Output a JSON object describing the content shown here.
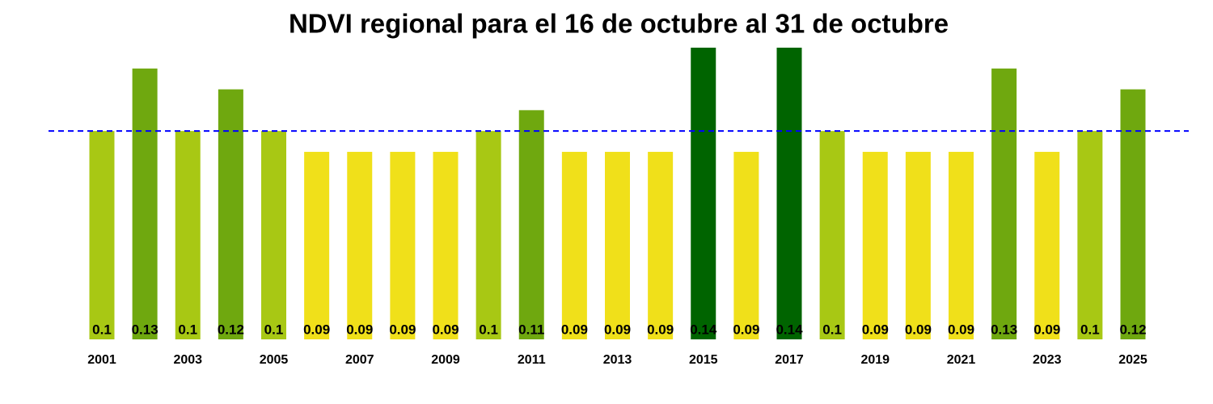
{
  "chart_data": {
    "type": "bar",
    "title": "NDVI regional para el 16 de octubre al 31 de octubre",
    "categories": [
      "2001",
      null,
      "2003",
      null,
      "2005",
      null,
      "2007",
      null,
      "2009",
      null,
      "2011",
      null,
      "2013",
      null,
      "2015",
      null,
      "2017",
      null,
      "2019",
      null,
      "2021",
      null,
      "2023",
      null,
      "2025"
    ],
    "values": [
      0.1,
      0.13,
      0.1,
      0.12,
      0.1,
      0.09,
      0.09,
      0.09,
      0.09,
      0.1,
      0.11,
      0.09,
      0.09,
      0.09,
      0.14,
      0.09,
      0.14,
      0.1,
      0.09,
      0.09,
      0.09,
      0.13,
      0.09,
      0.1,
      0.12
    ],
    "colors": [
      "#a8c814",
      "#6fa80f",
      "#a8c814",
      "#6fa80f",
      "#a8c814",
      "#f0e01a",
      "#f0e01a",
      "#f0e01a",
      "#f0e01a",
      "#a8c814",
      "#6fa80f",
      "#f0e01a",
      "#f0e01a",
      "#f0e01a",
      "#006400",
      "#f0e01a",
      "#006400",
      "#a8c814",
      "#f0e01a",
      "#f0e01a",
      "#f0e01a",
      "#6fa80f",
      "#f0e01a",
      "#a8c814",
      "#6fa80f"
    ],
    "ylim": [
      0,
      0.14
    ],
    "reference_line": {
      "value": 0.1,
      "color": "#0000ff"
    }
  }
}
